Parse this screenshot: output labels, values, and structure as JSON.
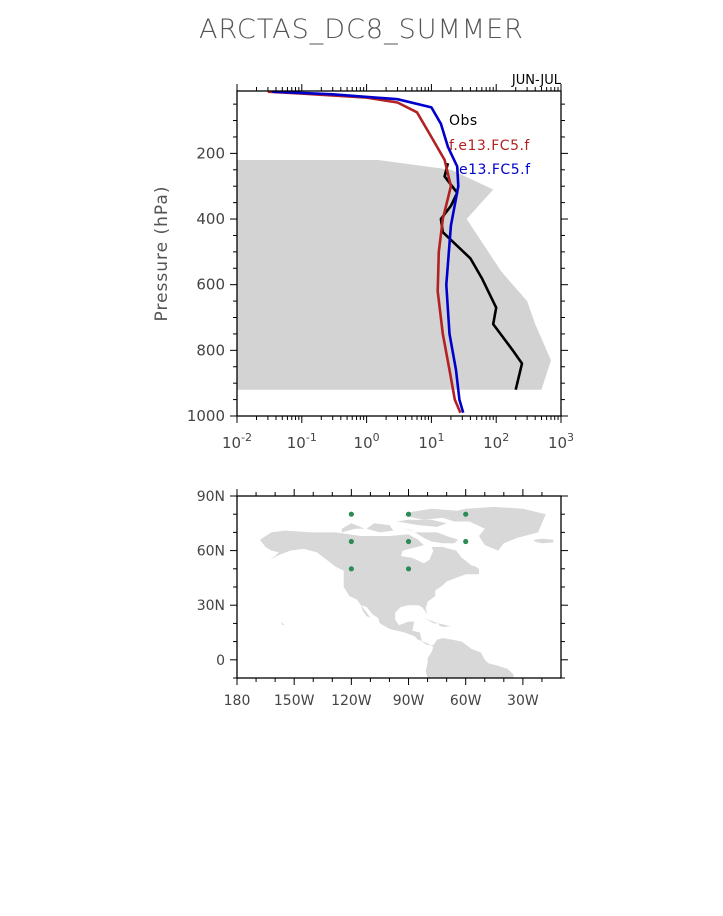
{
  "chart_data": [
    {
      "type": "line",
      "title": "ARCTAS_DC8_SUMMER",
      "subtitle": "JUN-JUL",
      "ylabel": "Pressure (hPa)",
      "xlabel": "",
      "xscale": "log",
      "xlim": [
        0.01,
        1000
      ],
      "ylim": [
        1000,
        10
      ],
      "y_inverted": true,
      "x_tick_labels": [
        {
          "base": "10",
          "exp": "-2"
        },
        {
          "base": "10",
          "exp": "-1"
        },
        {
          "base": "10",
          "exp": "0"
        },
        {
          "base": "10",
          "exp": "1"
        },
        {
          "base": "10",
          "exp": "2"
        },
        {
          "base": "10",
          "exp": "3"
        }
      ],
      "y_ticks": [
        200,
        400,
        600,
        800,
        1000
      ],
      "y_tick_labels": [
        "200",
        "400",
        "600",
        "800",
        "1000"
      ],
      "legend": [
        "Obs",
        "f.e13.FC5.f",
        "e13.FC5.f"
      ],
      "legend_position": "top-right",
      "shaded_range": {
        "name": "Obs range",
        "color": "#d3d3d3",
        "upper": [
          [
            1.5,
            220
          ],
          [
            20,
            250
          ],
          [
            90,
            310
          ],
          [
            35,
            400
          ],
          [
            60,
            470
          ],
          [
            120,
            560
          ],
          [
            300,
            650
          ],
          [
            400,
            720
          ],
          [
            700,
            830
          ],
          [
            500,
            920
          ]
        ]
      },
      "series": [
        {
          "name": "Obs",
          "color": "#000000",
          "points": [
            [
              18,
              230
            ],
            [
              16,
              270
            ],
            [
              25,
              320
            ],
            [
              20,
              360
            ],
            [
              14,
              400
            ],
            [
              15,
              440
            ],
            [
              40,
              520
            ],
            [
              60,
              580
            ],
            [
              100,
              670
            ],
            [
              90,
              720
            ],
            [
              180,
              800
            ],
            [
              250,
              840
            ],
            [
              200,
              920
            ]
          ]
        },
        {
          "name": "f.e13.FC5.f",
          "color": "#b22222",
          "points": [
            [
              0.03,
              12
            ],
            [
              0.1,
              18
            ],
            [
              1,
              30
            ],
            [
              3,
              45
            ],
            [
              6,
              75
            ],
            [
              10,
              150
            ],
            [
              16,
              220
            ],
            [
              20,
              300
            ],
            [
              15,
              400
            ],
            [
              13,
              500
            ],
            [
              12.5,
              620
            ],
            [
              15,
              750
            ],
            [
              19,
              860
            ],
            [
              23,
              950
            ],
            [
              28,
              990
            ]
          ]
        },
        {
          "name": "e13.FC5.f",
          "color": "#0000cd",
          "points": [
            [
              0.035,
              12
            ],
            [
              0.3,
              20
            ],
            [
              3,
              35
            ],
            [
              10,
              60
            ],
            [
              14,
              110
            ],
            [
              18,
              180
            ],
            [
              25,
              240
            ],
            [
              26,
              300
            ],
            [
              20,
              420
            ],
            [
              17,
              600
            ],
            [
              19,
              750
            ],
            [
              24,
              860
            ],
            [
              27,
              950
            ],
            [
              31,
              990
            ]
          ]
        }
      ]
    },
    {
      "type": "scatter",
      "title": "",
      "xlabel": "",
      "ylabel": "",
      "xlim": [
        -180,
        -10
      ],
      "ylim": [
        -10,
        90
      ],
      "x_tick_values": [
        -180,
        -150,
        -120,
        -90,
        -60,
        -30
      ],
      "x_tick_labels": [
        "180",
        "150W",
        "120W",
        "90W",
        "60W",
        "30W"
      ],
      "y_tick_values": [
        90,
        60,
        30,
        0
      ],
      "y_tick_labels": [
        "90N",
        "60N",
        "30N",
        "0"
      ],
      "land_color": "#d8d8d8",
      "point_color": "#2e8b57",
      "points": [
        {
          "lon": -120,
          "lat": 80
        },
        {
          "lon": -90,
          "lat": 80
        },
        {
          "lon": -60,
          "lat": 80
        },
        {
          "lon": -120,
          "lat": 65
        },
        {
          "lon": -90,
          "lat": 65
        },
        {
          "lon": -60,
          "lat": 65
        },
        {
          "lon": -120,
          "lat": 50
        },
        {
          "lon": -90,
          "lat": 50
        }
      ],
      "land": [
        [
          [
            -168,
            66
          ],
          [
            -162,
            70
          ],
          [
            -155,
            71
          ],
          [
            -141,
            70
          ],
          [
            -128,
            70
          ],
          [
            -115,
            68
          ],
          [
            -100,
            68
          ],
          [
            -90,
            69
          ],
          [
            -85,
            66
          ],
          [
            -82,
            63
          ],
          [
            -93,
            60
          ],
          [
            -94,
            57
          ],
          [
            -88,
            56
          ],
          [
            -82,
            53
          ],
          [
            -79,
            55
          ],
          [
            -77,
            60
          ],
          [
            -78,
            62
          ],
          [
            -72,
            62
          ],
          [
            -65,
            60
          ],
          [
            -62,
            56
          ],
          [
            -57,
            52
          ],
          [
            -55,
            50
          ],
          [
            -60,
            47
          ],
          [
            -65,
            45
          ],
          [
            -70,
            43
          ],
          [
            -72,
            41
          ],
          [
            -76,
            38
          ],
          [
            -76,
            35
          ],
          [
            -80,
            32
          ],
          [
            -81,
            28
          ],
          [
            -80,
            25
          ],
          [
            -83,
            29
          ],
          [
            -85,
            30
          ],
          [
            -90,
            30
          ],
          [
            -94,
            29
          ],
          [
            -97,
            26
          ],
          [
            -97,
            22
          ],
          [
            -95,
            19
          ],
          [
            -90,
            21
          ],
          [
            -87,
            21
          ],
          [
            -88,
            16
          ],
          [
            -84,
            15
          ],
          [
            -83,
            10
          ],
          [
            -80,
            8
          ],
          [
            -77,
            8
          ],
          [
            -75,
            11
          ],
          [
            -72,
            12
          ],
          [
            -67,
            11
          ],
          [
            -62,
            10
          ],
          [
            -57,
            6
          ],
          [
            -52,
            4
          ],
          [
            -50,
            0
          ],
          [
            -48,
            -2
          ],
          [
            -44,
            -3
          ],
          [
            -38,
            -5
          ],
          [
            -35,
            -8
          ],
          [
            -35,
            -10
          ],
          [
            -80,
            -10
          ],
          [
            -81,
            -6
          ],
          [
            -80,
            -2
          ],
          [
            -80,
            1
          ],
          [
            -78,
            4
          ],
          [
            -77,
            7
          ],
          [
            -80,
            9
          ],
          [
            -85,
            11
          ],
          [
            -87,
            13
          ],
          [
            -92,
            15
          ],
          [
            -96,
            16
          ],
          [
            -100,
            17
          ],
          [
            -105,
            20
          ],
          [
            -106,
            23
          ],
          [
            -109,
            25
          ],
          [
            -112,
            29
          ],
          [
            -115,
            30
          ],
          [
            -114,
            27
          ],
          [
            -112,
            24
          ],
          [
            -110,
            23
          ],
          [
            -112,
            26
          ],
          [
            -115,
            30
          ],
          [
            -117,
            33
          ],
          [
            -121,
            35
          ],
          [
            -124,
            40
          ],
          [
            -124,
            46
          ],
          [
            -124,
            49
          ],
          [
            -128,
            51
          ],
          [
            -133,
            55
          ],
          [
            -138,
            59
          ],
          [
            -145,
            61
          ],
          [
            -152,
            60
          ],
          [
            -157,
            58
          ],
          [
            -163,
            55
          ],
          [
            -160,
            57
          ],
          [
            -158,
            59
          ],
          [
            -162,
            60
          ],
          [
            -165,
            62
          ],
          [
            -168,
            66
          ]
        ],
        [
          [
            -125,
            70
          ],
          [
            -118,
            72
          ],
          [
            -113,
            72
          ],
          [
            -120,
            75
          ],
          [
            -125,
            72
          ]
        ],
        [
          [
            -112,
            72
          ],
          [
            -105,
            70
          ],
          [
            -98,
            71
          ],
          [
            -100,
            74
          ],
          [
            -108,
            75
          ],
          [
            -112,
            72
          ]
        ],
        [
          [
            -95,
            73
          ],
          [
            -86,
            70
          ],
          [
            -75,
            70
          ],
          [
            -70,
            68
          ],
          [
            -64,
            66
          ],
          [
            -66,
            64
          ],
          [
            -72,
            64
          ],
          [
            -78,
            65
          ],
          [
            -82,
            67
          ],
          [
            -88,
            71
          ],
          [
            -95,
            73
          ]
        ],
        [
          [
            -96,
            76
          ],
          [
            -85,
            74
          ],
          [
            -75,
            73
          ],
          [
            -70,
            75
          ],
          [
            -78,
            77
          ],
          [
            -90,
            77
          ],
          [
            -96,
            76
          ]
        ],
        [
          [
            -92,
            79
          ],
          [
            -82,
            77
          ],
          [
            -72,
            78
          ],
          [
            -62,
            80
          ],
          [
            -65,
            82
          ],
          [
            -78,
            83
          ],
          [
            -90,
            81
          ],
          [
            -92,
            79
          ]
        ],
        [
          [
            -72,
            78
          ],
          [
            -66,
            76
          ],
          [
            -58,
            76
          ],
          [
            -50,
            72
          ],
          [
            -53,
            68
          ],
          [
            -50,
            63
          ],
          [
            -43,
            60
          ],
          [
            -40,
            64
          ],
          [
            -33,
            67
          ],
          [
            -22,
            70
          ],
          [
            -20,
            75
          ],
          [
            -18,
            80
          ],
          [
            -30,
            83
          ],
          [
            -45,
            84
          ],
          [
            -60,
            83
          ],
          [
            -68,
            81
          ],
          [
            -72,
            78
          ]
        ],
        [
          [
            -24,
            65
          ],
          [
            -20,
            64
          ],
          [
            -14,
            64.5
          ],
          [
            -14,
            66
          ],
          [
            -20,
            66.5
          ],
          [
            -24,
            66
          ]
        ],
        [
          [
            -60,
            47
          ],
          [
            -56,
            47
          ],
          [
            -53,
            47
          ],
          [
            -53,
            50
          ],
          [
            -56,
            52
          ],
          [
            -59,
            48
          ],
          [
            -60,
            47
          ]
        ],
        [
          [
            -82,
            23
          ],
          [
            -77,
            21
          ],
          [
            -74,
            20
          ],
          [
            -77,
            20
          ],
          [
            -80,
            22
          ],
          [
            -82,
            23
          ]
        ],
        [
          [
            -74,
            20
          ],
          [
            -70,
            19
          ],
          [
            -68,
            18.5
          ],
          [
            -72,
            18
          ],
          [
            -74,
            19
          ]
        ],
        [
          [
            -157,
            21
          ],
          [
            -156,
            20
          ],
          [
            -155,
            19.5
          ],
          [
            -156,
            19
          ],
          [
            -157,
            21
          ]
        ]
      ]
    }
  ]
}
